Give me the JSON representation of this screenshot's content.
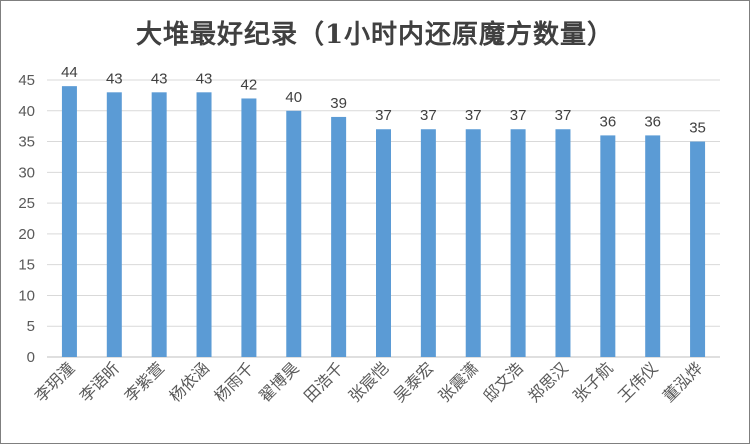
{
  "chart_data": {
    "type": "bar",
    "title": "大堆最好纪录（1小时内还原魔方数量）",
    "categories": [
      "李玥潼",
      "李语昕",
      "李紫萱",
      "杨依涵",
      "杨雨千",
      "翟博昊",
      "田浩千",
      "张宸恺",
      "吴泰宏",
      "张震潇",
      "邸文浩",
      "郑思汉",
      "张子航",
      "王伟仪",
      "董泓烨"
    ],
    "values": [
      44,
      43,
      43,
      43,
      42,
      40,
      39,
      37,
      37,
      37,
      37,
      37,
      36,
      36,
      35
    ],
    "ylim": [
      0,
      45
    ],
    "yticks": [
      0,
      5,
      10,
      15,
      20,
      25,
      30,
      35,
      40,
      45
    ],
    "grid": true,
    "bar_color": "#5b9bd5",
    "grid_color": "#d9d9d9",
    "data_labels": true,
    "legend": "none"
  }
}
